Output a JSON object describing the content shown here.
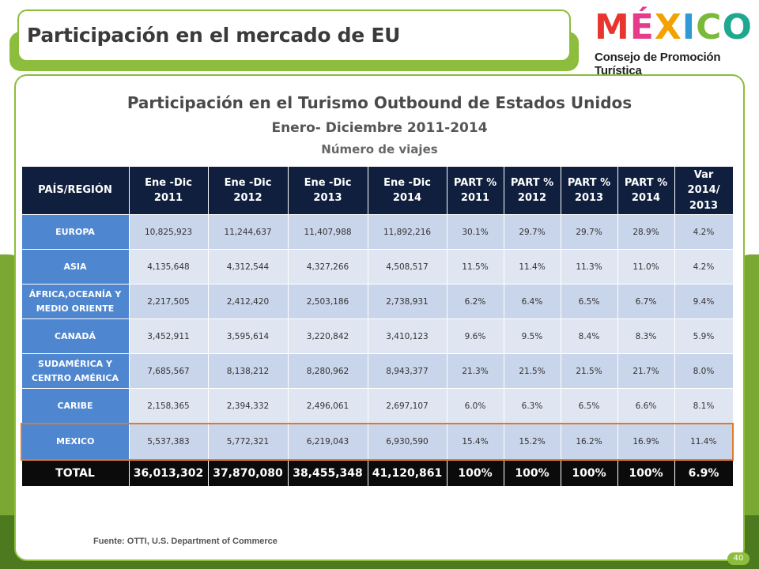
{
  "header": {
    "title": "Participación en el mercado de EU"
  },
  "logo": {
    "word": [
      "M",
      "É",
      "X",
      "I",
      "C",
      "O"
    ],
    "word_colors": [
      "#e8362f",
      "#e63a8c",
      "#f2a100",
      "#2f9ad3",
      "#7aba3a",
      "#1fa88f"
    ],
    "tagline": "Consejo de Promoción Turística"
  },
  "report": {
    "title": "Participación en el Turismo Outbound de Estados Unidos",
    "period": "Enero- Diciembre 2011-2014",
    "unit": "Número de viajes"
  },
  "table": {
    "headers": [
      [
        "PAÍS/REGIÓN"
      ],
      [
        "Ene -Dic",
        "2011"
      ],
      [
        "Ene -Dic",
        "2012"
      ],
      [
        "Ene -Dic",
        "2013"
      ],
      [
        "Ene -Dic",
        "2014"
      ],
      [
        "PART %",
        "2011"
      ],
      [
        "PART %",
        "2012"
      ],
      [
        "PART %",
        "2013"
      ],
      [
        "PART %",
        "2014"
      ],
      [
        "Var",
        "2014/",
        "2013"
      ]
    ],
    "rows": [
      {
        "region": [
          "EUROPA"
        ],
        "values": [
          "10,825,923",
          "11,244,637",
          "11,407,988",
          "11,892,216",
          "30.1%",
          "29.7%",
          "29.7%",
          "28.9%",
          "4.2%"
        ]
      },
      {
        "region": [
          "ASIA"
        ],
        "values": [
          "4,135,648",
          "4,312,544",
          "4,327,266",
          "4,508,517",
          "11.5%",
          "11.4%",
          "11.3%",
          "11.0%",
          "4.2%"
        ]
      },
      {
        "region": [
          "ÁFRICA,OCEANÍA Y",
          "MEDIO ORIENTE"
        ],
        "values": [
          "2,217,505",
          "2,412,420",
          "2,503,186",
          "2,738,931",
          "6.2%",
          "6.4%",
          "6.5%",
          "6.7%",
          "9.4%"
        ]
      },
      {
        "region": [
          "CANADÁ"
        ],
        "values": [
          "3,452,911",
          "3,595,614",
          "3,220,842",
          "3,410,123",
          "9.6%",
          "9.5%",
          "8.4%",
          "8.3%",
          "5.9%"
        ]
      },
      {
        "region": [
          "SUDAMÉRICA Y",
          "CENTRO AMÉRICA"
        ],
        "values": [
          "7,685,567",
          "8,138,212",
          "8,280,962",
          "8,943,377",
          "21.3%",
          "21.5%",
          "21.5%",
          "21.7%",
          "8.0%"
        ]
      },
      {
        "region": [
          "CARIBE"
        ],
        "values": [
          "2,158,365",
          "2,394,332",
          "2,496,061",
          "2,697,107",
          "6.0%",
          "6.3%",
          "6.5%",
          "6.6%",
          "8.1%"
        ]
      }
    ],
    "highlight": {
      "region": [
        "MEXICO"
      ],
      "values": [
        "5,537,383",
        "5,772,321",
        "6,219,043",
        "6,930,590",
        "15.4%",
        "15.2%",
        "16.2%",
        "16.9%",
        "11.4%"
      ]
    },
    "total": {
      "label": "TOTAL",
      "values": [
        "36,013,302",
        "37,870,080",
        "38,455,348",
        "41,120,861",
        "100%",
        "100%",
        "100%",
        "100%",
        "6.9%"
      ]
    }
  },
  "footer": {
    "source": "Fuente: OTTI, U.S. Department of Commerce",
    "page": "40"
  },
  "colors": {
    "brand_green": "#8cbd3c",
    "header_navy": "#0f1f3d",
    "region_blue": "#4f86d0",
    "highlight_orange": "#e07a2a"
  }
}
